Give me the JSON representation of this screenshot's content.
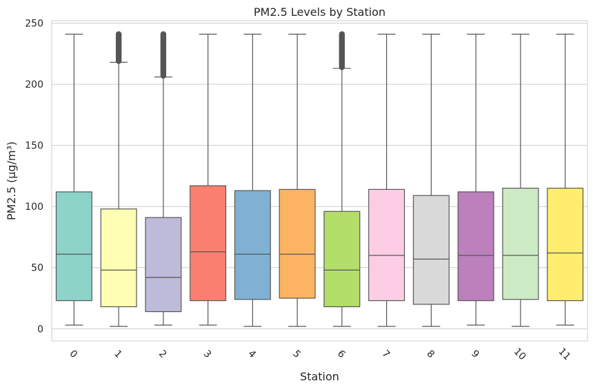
{
  "chart_data": {
    "type": "box",
    "title": "PM2.5 Levels by Station",
    "xlabel": "Station",
    "ylabel": "PM2.5 (μg/m³)",
    "categories": [
      "0",
      "1",
      "2",
      "3",
      "4",
      "5",
      "6",
      "7",
      "8",
      "9",
      "10",
      "11"
    ],
    "ylim": [
      -10,
      252
    ],
    "yticks": [
      0,
      50,
      100,
      150,
      200,
      250
    ],
    "grid": true,
    "boxes": [
      {
        "category": "0",
        "whisker_low": 3,
        "q1": 23,
        "median": 61,
        "q3": 112,
        "whisker_high": 241,
        "outliers_from": null,
        "color": "#8dd3c7"
      },
      {
        "category": "1",
        "whisker_low": 2,
        "q1": 18,
        "median": 48,
        "q3": 98,
        "whisker_high": 218,
        "outliers_from": 219,
        "color": "#ffffb3"
      },
      {
        "category": "2",
        "whisker_low": 3,
        "q1": 14,
        "median": 42,
        "q3": 91,
        "whisker_high": 206,
        "outliers_from": 207,
        "color": "#bebada"
      },
      {
        "category": "3",
        "whisker_low": 3,
        "q1": 23,
        "median": 63,
        "q3": 117,
        "whisker_high": 241,
        "outliers_from": null,
        "color": "#fb8072"
      },
      {
        "category": "4",
        "whisker_low": 2,
        "q1": 24,
        "median": 61,
        "q3": 113,
        "whisker_high": 241,
        "outliers_from": null,
        "color": "#80b1d3"
      },
      {
        "category": "5",
        "whisker_low": 2,
        "q1": 25,
        "median": 61,
        "q3": 114,
        "whisker_high": 241,
        "outliers_from": null,
        "color": "#fdb462"
      },
      {
        "category": "6",
        "whisker_low": 2,
        "q1": 18,
        "median": 48,
        "q3": 96,
        "whisker_high": 213,
        "outliers_from": 214,
        "color": "#b3de69"
      },
      {
        "category": "7",
        "whisker_low": 2,
        "q1": 23,
        "median": 60,
        "q3": 114,
        "whisker_high": 241,
        "outliers_from": null,
        "color": "#fccde5"
      },
      {
        "category": "8",
        "whisker_low": 2,
        "q1": 20,
        "median": 57,
        "q3": 109,
        "whisker_high": 241,
        "outliers_from": null,
        "color": "#d9d9d9"
      },
      {
        "category": "9",
        "whisker_low": 3,
        "q1": 23,
        "median": 60,
        "q3": 112,
        "whisker_high": 241,
        "outliers_from": null,
        "color": "#bc80bd"
      },
      {
        "category": "10",
        "whisker_low": 2,
        "q1": 24,
        "median": 60,
        "q3": 115,
        "whisker_high": 241,
        "outliers_from": null,
        "color": "#ccebc5"
      },
      {
        "category": "11",
        "whisker_low": 3,
        "q1": 23,
        "median": 62,
        "q3": 115,
        "whisker_high": 241,
        "outliers_from": null,
        "color": "#ffed6f"
      }
    ],
    "outlier_max": 241
  }
}
